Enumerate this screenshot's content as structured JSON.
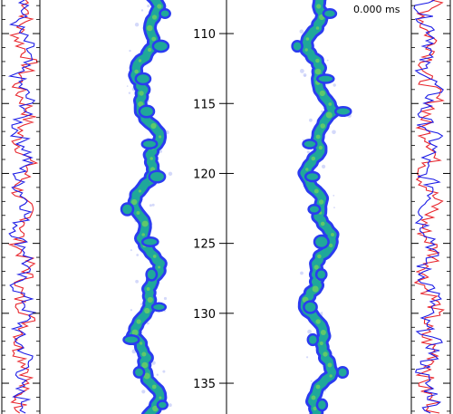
{
  "time_label": "0.000 ms",
  "colors": {
    "series_red": "#e8232a",
    "series_blue": "#1a1ae6",
    "blob_outer": "#2a3cf0",
    "blob_inner": "#1fa89a",
    "blob_core": "#6fcf5f",
    "axis": "#000000"
  },
  "chart_data": {
    "type": "line",
    "axis": {
      "ticks": [
        110,
        115,
        120,
        125,
        130,
        135
      ],
      "ylim": [
        107.6,
        137.2
      ],
      "orientation": "vertical"
    },
    "panels": [
      {
        "name": "left-profile",
        "series": [
          {
            "color_key": "series_red"
          },
          {
            "color_key": "series_blue"
          }
        ]
      },
      {
        "name": "left-jet-image"
      },
      {
        "name": "right-jet-image"
      },
      {
        "name": "right-profile",
        "series": [
          {
            "color_key": "series_red"
          },
          {
            "color_key": "series_blue"
          }
        ]
      }
    ]
  }
}
